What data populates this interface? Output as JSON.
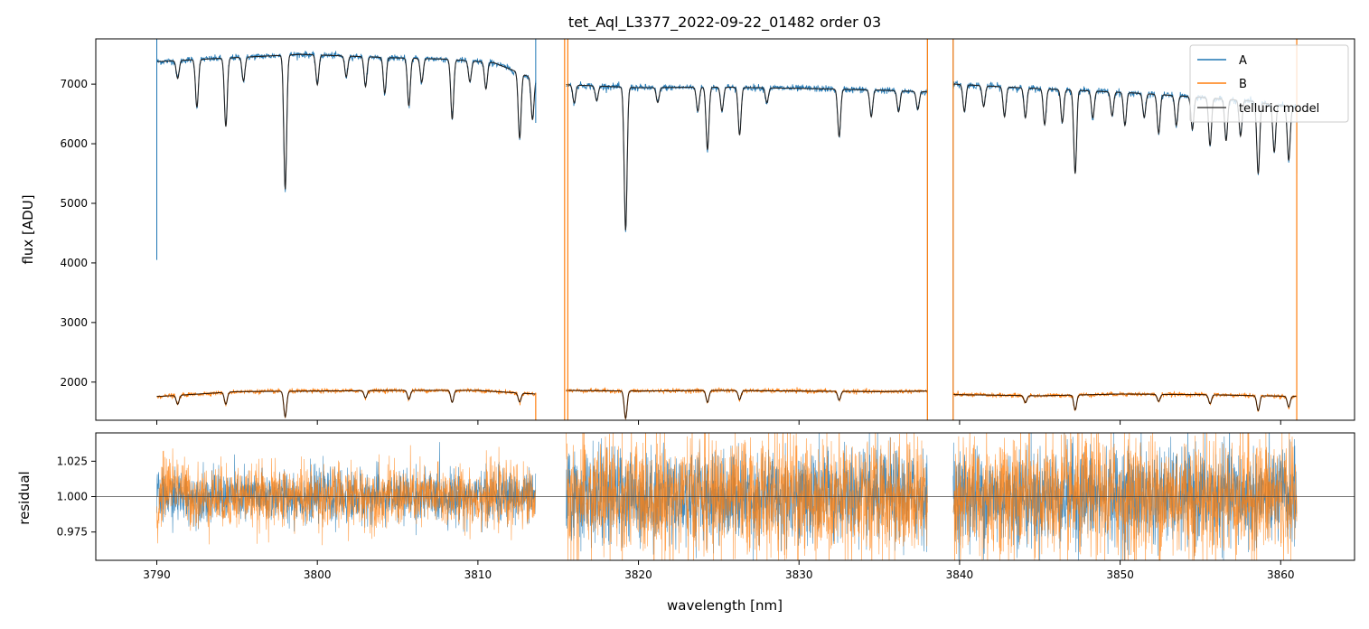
{
  "chart_data": [
    {
      "type": "line",
      "panel": "top",
      "title": "tet_Aql_L3377_2022-09-22_01482  order 03",
      "xlabel": "",
      "ylabel": "flux [ADU]",
      "xlim": [
        3786.2,
        3864.6
      ],
      "ylim": [
        1360,
        7760
      ],
      "yticks": [
        "2000",
        "3000",
        "4000",
        "5000",
        "6000",
        "7000"
      ],
      "xticks_shown": false,
      "grid": false,
      "legend": {
        "placement": "top-right",
        "entries": [
          {
            "label": "A",
            "color": "#1f77b4"
          },
          {
            "label": "B",
            "color": "#ff7f0e"
          },
          {
            "label": "telluric model",
            "color": "#222222"
          }
        ]
      },
      "segments": [
        [
          3790.0,
          3813.6
        ],
        [
          3815.5,
          3838.0
        ],
        [
          3839.6,
          3861.0
        ]
      ],
      "series": [
        {
          "name": "A",
          "color": "#1f77b4",
          "continuum": [
            {
              "x": 3790.2,
              "y": 7380
            },
            {
              "x": 3793,
              "y": 7420
            },
            {
              "x": 3796,
              "y": 7460
            },
            {
              "x": 3799,
              "y": 7500
            },
            {
              "x": 3802,
              "y": 7470
            },
            {
              "x": 3805,
              "y": 7440
            },
            {
              "x": 3808,
              "y": 7420
            },
            {
              "x": 3811,
              "y": 7360
            },
            {
              "x": 3813.6,
              "y": 7080
            },
            {
              "x": 3815.6,
              "y": 6990
            },
            {
              "x": 3820,
              "y": 6940
            },
            {
              "x": 3825,
              "y": 6950
            },
            {
              "x": 3830,
              "y": 6930
            },
            {
              "x": 3835,
              "y": 6900
            },
            {
              "x": 3838,
              "y": 6870
            },
            {
              "x": 3839.7,
              "y": 7000
            },
            {
              "x": 3843,
              "y": 6950
            },
            {
              "x": 3847,
              "y": 6900
            },
            {
              "x": 3851,
              "y": 6850
            },
            {
              "x": 3855,
              "y": 6780
            },
            {
              "x": 3858,
              "y": 6720
            },
            {
              "x": 3861,
              "y": 6600
            }
          ],
          "absorption_lines": [
            {
              "x": 3791.3,
              "depth": 300
            },
            {
              "x": 3792.5,
              "depth": 800
            },
            {
              "x": 3794.3,
              "depth": 1150
            },
            {
              "x": 3795.4,
              "depth": 400
            },
            {
              "x": 3798.0,
              "depth": 2250
            },
            {
              "x": 3800.0,
              "depth": 500
            },
            {
              "x": 3801.8,
              "depth": 350
            },
            {
              "x": 3803.0,
              "depth": 500
            },
            {
              "x": 3804.2,
              "depth": 600
            },
            {
              "x": 3805.7,
              "depth": 800
            },
            {
              "x": 3806.5,
              "depth": 400
            },
            {
              "x": 3808.4,
              "depth": 1000
            },
            {
              "x": 3809.5,
              "depth": 350
            },
            {
              "x": 3810.5,
              "depth": 450
            },
            {
              "x": 3812.6,
              "depth": 1100
            },
            {
              "x": 3813.4,
              "depth": 700
            },
            {
              "x": 3816.0,
              "depth": 300
            },
            {
              "x": 3817.4,
              "depth": 250
            },
            {
              "x": 3819.2,
              "depth": 2400
            },
            {
              "x": 3821.2,
              "depth": 250
            },
            {
              "x": 3823.7,
              "depth": 400
            },
            {
              "x": 3824.3,
              "depth": 1050
            },
            {
              "x": 3825.2,
              "depth": 400
            },
            {
              "x": 3826.3,
              "depth": 800
            },
            {
              "x": 3828.0,
              "depth": 250
            },
            {
              "x": 3832.5,
              "depth": 800
            },
            {
              "x": 3834.5,
              "depth": 450
            },
            {
              "x": 3836.2,
              "depth": 350
            },
            {
              "x": 3837.4,
              "depth": 300
            },
            {
              "x": 3840.3,
              "depth": 450
            },
            {
              "x": 3841.5,
              "depth": 350
            },
            {
              "x": 3842.8,
              "depth": 500
            },
            {
              "x": 3844.1,
              "depth": 500
            },
            {
              "x": 3845.3,
              "depth": 600
            },
            {
              "x": 3846.4,
              "depth": 550
            },
            {
              "x": 3847.2,
              "depth": 1400
            },
            {
              "x": 3848.3,
              "depth": 450
            },
            {
              "x": 3849.5,
              "depth": 400
            },
            {
              "x": 3850.3,
              "depth": 550
            },
            {
              "x": 3851.5,
              "depth": 400
            },
            {
              "x": 3852.4,
              "depth": 650
            },
            {
              "x": 3853.5,
              "depth": 500
            },
            {
              "x": 3854.5,
              "depth": 550
            },
            {
              "x": 3855.6,
              "depth": 800
            },
            {
              "x": 3856.6,
              "depth": 700
            },
            {
              "x": 3857.5,
              "depth": 600
            },
            {
              "x": 3858.6,
              "depth": 1200
            },
            {
              "x": 3859.6,
              "depth": 800
            },
            {
              "x": 3860.5,
              "depth": 900
            }
          ],
          "edge_spikes": [
            {
              "x": 3790.0,
              "y_low": 4050,
              "y_high": 7760
            },
            {
              "x": 3813.6,
              "y_low": 6350,
              "y_high": 7760
            },
            {
              "x": 3838.0,
              "y_low": 1360,
              "y_high": 7760
            },
            {
              "x": 3839.6,
              "y_low": 1360,
              "y_high": 7760
            },
            {
              "x": 3861.0,
              "y_low": 5500,
              "y_high": 7760
            }
          ]
        },
        {
          "name": "B",
          "color": "#ff7f0e",
          "continuum": [
            {
              "x": 3790.2,
              "y": 1760
            },
            {
              "x": 3795,
              "y": 1840
            },
            {
              "x": 3800,
              "y": 1850
            },
            {
              "x": 3805,
              "y": 1860
            },
            {
              "x": 3810,
              "y": 1860
            },
            {
              "x": 3813.6,
              "y": 1800
            },
            {
              "x": 3815.6,
              "y": 1860
            },
            {
              "x": 3820,
              "y": 1850
            },
            {
              "x": 3825,
              "y": 1860
            },
            {
              "x": 3830,
              "y": 1850
            },
            {
              "x": 3835,
              "y": 1840
            },
            {
              "x": 3838,
              "y": 1850
            },
            {
              "x": 3839.7,
              "y": 1790
            },
            {
              "x": 3845,
              "y": 1770
            },
            {
              "x": 3850,
              "y": 1800
            },
            {
              "x": 3855,
              "y": 1790
            },
            {
              "x": 3861,
              "y": 1760
            }
          ],
          "absorption_lines": [
            {
              "x": 3791.3,
              "depth": 150
            },
            {
              "x": 3794.3,
              "depth": 200
            },
            {
              "x": 3798.0,
              "depth": 430
            },
            {
              "x": 3803.0,
              "depth": 120
            },
            {
              "x": 3805.7,
              "depth": 150
            },
            {
              "x": 3808.4,
              "depth": 200
            },
            {
              "x": 3812.6,
              "depth": 150
            },
            {
              "x": 3819.2,
              "depth": 460
            },
            {
              "x": 3824.3,
              "depth": 200
            },
            {
              "x": 3826.3,
              "depth": 150
            },
            {
              "x": 3832.5,
              "depth": 150
            },
            {
              "x": 3844.1,
              "depth": 120
            },
            {
              "x": 3847.2,
              "depth": 250
            },
            {
              "x": 3852.4,
              "depth": 120
            },
            {
              "x": 3855.6,
              "depth": 150
            },
            {
              "x": 3858.6,
              "depth": 250
            },
            {
              "x": 3860.5,
              "depth": 180
            }
          ],
          "edge_spikes": [
            {
              "x": 3813.6,
              "y_low": 1360,
              "y_high": 1820
            },
            {
              "x": 3815.4,
              "y_low": 1360,
              "y_high": 7760
            },
            {
              "x": 3815.6,
              "y_low": 1360,
              "y_high": 7760
            },
            {
              "x": 3838.0,
              "y_low": 1360,
              "y_high": 7760
            },
            {
              "x": 3839.6,
              "y_low": 1360,
              "y_high": 7760
            },
            {
              "x": 3861.0,
              "y_low": 1360,
              "y_high": 7760
            }
          ]
        },
        {
          "name": "telluric model",
          "color": "#222222",
          "description_of_values": "follows the continuum and absorption lines of A and B"
        }
      ]
    },
    {
      "type": "line",
      "panel": "bottom",
      "title": "",
      "xlabel": "wavelength [nm]",
      "ylabel": "residual",
      "xlim": [
        3786.2,
        3864.6
      ],
      "ylim": [
        0.955,
        1.045
      ],
      "xticks": [
        "3790",
        "3800",
        "3810",
        "3820",
        "3830",
        "3840",
        "3850",
        "3860"
      ],
      "yticks": [
        "0.975",
        "1.000",
        "1.025"
      ],
      "reference_line": 1.0,
      "grid": false,
      "segments": [
        [
          3790.0,
          3813.6
        ],
        [
          3815.5,
          3838.0
        ],
        [
          3839.6,
          3861.0
        ]
      ],
      "series": [
        {
          "name": "A",
          "color": "#1f77b4",
          "noise_std_by_segment": [
            0.009,
            0.016,
            0.017
          ]
        },
        {
          "name": "B",
          "color": "#ff7f0e",
          "noise_std_by_segment": [
            0.011,
            0.021,
            0.022
          ],
          "excess_near_start": {
            "x_range": [
              3790.0,
              3792.0
            ],
            "offset": 0.01
          }
        }
      ]
    }
  ]
}
